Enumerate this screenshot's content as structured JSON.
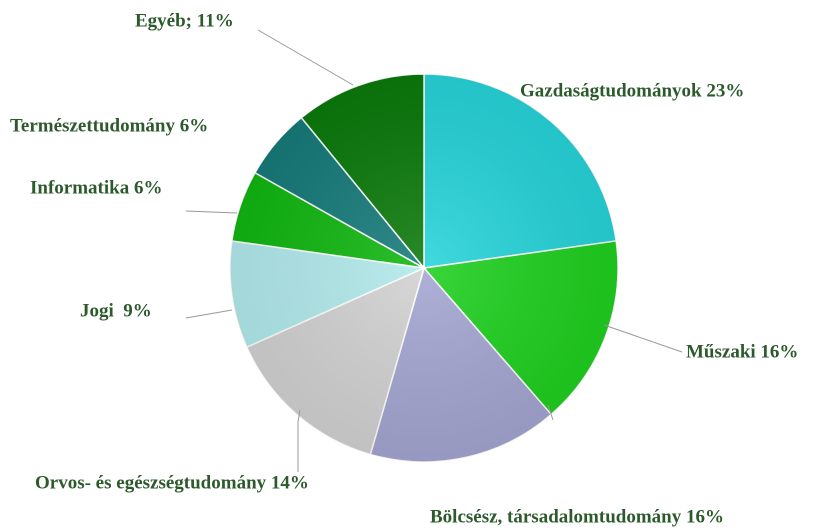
{
  "chart_data": {
    "type": "pie",
    "value_labels": [
      "Gazdaságtudományok 23%",
      "Műszaki 16%",
      "Bölcsész, társadalomtudomány 16%",
      "Orvos- és egészségtudomány 14%",
      "Jogi  9%",
      "Informatika 6%",
      "Természettudomány 6%",
      "Egyéb; 11%"
    ],
    "values": [
      23,
      16,
      16,
      14,
      9,
      6,
      6,
      11
    ],
    "colors": [
      "#26d4da",
      "#1fd01f",
      "#a4a6d2",
      "#d2d2d2",
      "#b2eaec",
      "#11b711",
      "#167b7a",
      "#0b7a0b"
    ]
  }
}
